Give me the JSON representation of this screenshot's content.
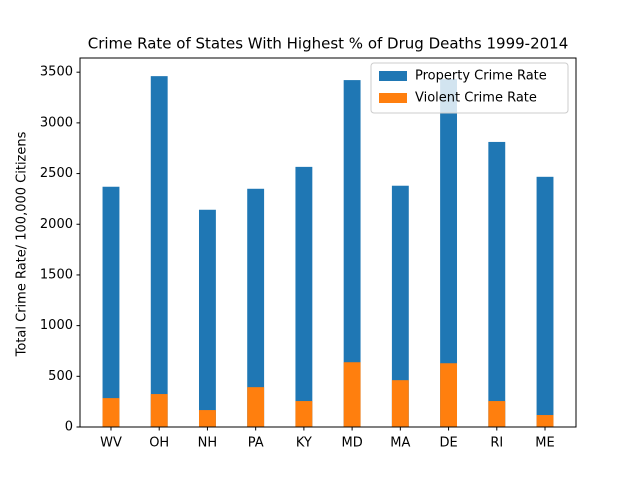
{
  "chart_data": {
    "type": "bar",
    "title": "Crime Rate of States With Highest % of Drug Deaths 1999-2014",
    "y_label": "Total Crime Rate/ 100,000 Citizens",
    "categories": [
      "WV",
      "OH",
      "NH",
      "PA",
      "KY",
      "MD",
      "MA",
      "DE",
      "RI",
      "ME"
    ],
    "series": [
      {
        "name": "Property Crime Rate",
        "color": "#1f77b4",
        "values": [
          2370,
          3461,
          2143,
          2350,
          2566,
          3422,
          2380,
          3432,
          2812,
          2468
        ]
      },
      {
        "name": "Violent Crime Rate",
        "color": "#ff7f0e",
        "values": [
          285,
          325,
          167,
          393,
          256,
          639,
          462,
          629,
          256,
          118
        ]
      }
    ],
    "ylim": [
      0,
      3640
    ],
    "yticks": [
      0,
      500,
      1000,
      1500,
      2000,
      2500,
      3000,
      3500
    ],
    "legend": "upper right"
  }
}
